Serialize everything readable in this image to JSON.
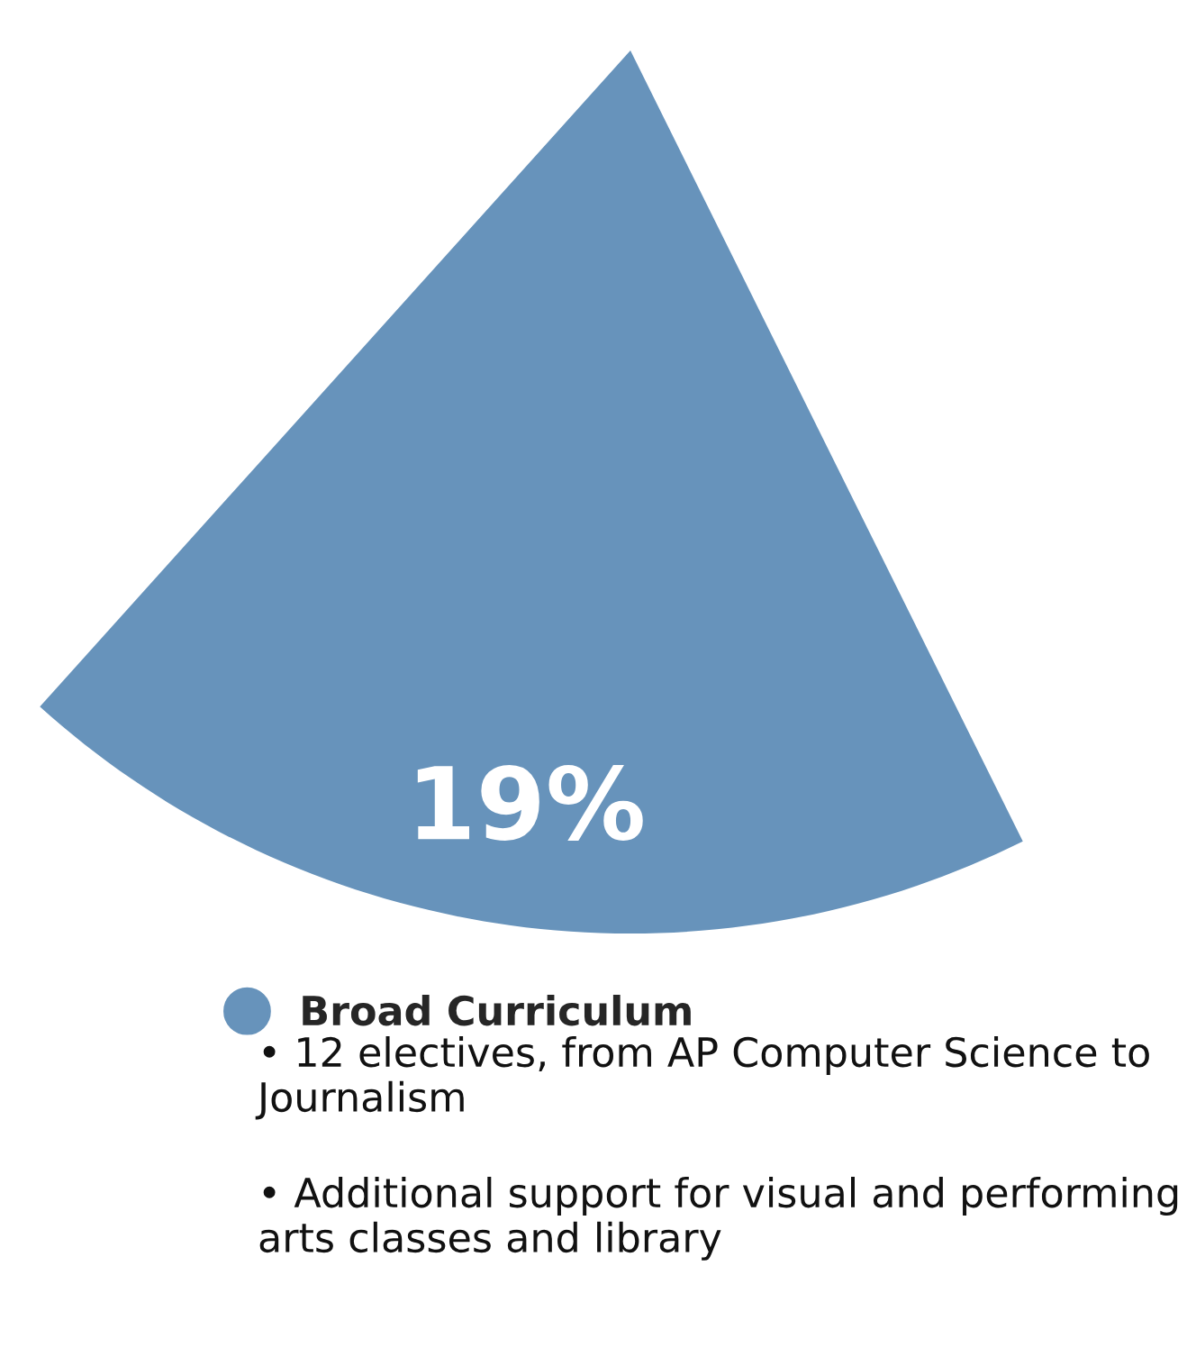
{
  "chart_data": {
    "type": "pie",
    "categories": [
      "Broad Curriculum"
    ],
    "values": [
      19
    ],
    "colors": [
      "#6793bb"
    ],
    "value_labels": [
      "19%"
    ],
    "legend": "bottom",
    "annotations": [
      "• 12 electives, from AP Computer Science to Journalism",
      "• Additional support for visual and performing arts classes and library"
    ]
  }
}
